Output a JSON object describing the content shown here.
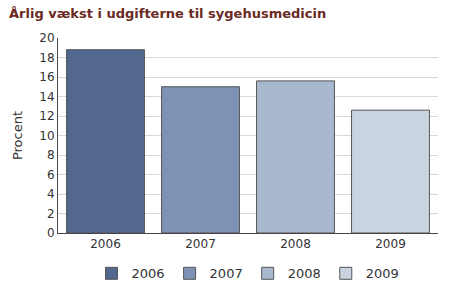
{
  "chart_data": {
    "type": "bar",
    "title": "Årlig vækst i udgifterne til sygehusmedicin",
    "y_label": "Procent",
    "categories": [
      "2006",
      "2007",
      "2008",
      "2009"
    ],
    "values": [
      18.8,
      15.0,
      15.6,
      12.6
    ],
    "colors": [
      "#52688f",
      "#7e92b3",
      "#a8b9cf",
      "#c9d4e0"
    ],
    "ylim": [
      0,
      20
    ],
    "yticks": [
      0,
      2,
      4,
      6,
      8,
      10,
      12,
      14,
      16,
      18,
      20
    ],
    "grid": true,
    "legend": "bottom"
  }
}
